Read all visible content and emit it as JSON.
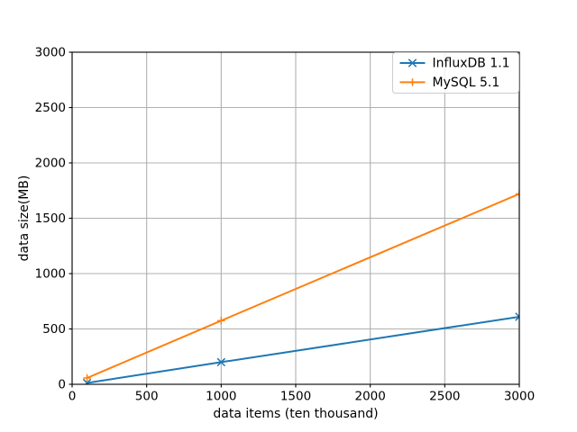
{
  "figure": {
    "background": "#ffffff"
  },
  "colors": {
    "spine": "#000000",
    "grid": "#b0b0b0",
    "tick": "#000000",
    "text": "#000000",
    "legend_border": "#cccccc",
    "legend_background": "#ffffff"
  },
  "chart_data": {
    "type": "line",
    "title": "",
    "xlabel": "data items (ten thousand)",
    "ylabel": "data size(MB)",
    "xlim": [
      0,
      3000
    ],
    "ylim": [
      0,
      3000
    ],
    "xticks": [
      0,
      500,
      1000,
      1500,
      2000,
      2500,
      3000
    ],
    "yticks": [
      0,
      500,
      1000,
      1500,
      2000,
      2500,
      3000
    ],
    "grid": true,
    "legend_position": "upper-right",
    "x": [
      100,
      1000,
      3000
    ],
    "series": [
      {
        "name": "InfluxDB 1.1",
        "color": "#1f77b4",
        "marker": "x",
        "values": [
          12,
          200,
          610
        ]
      },
      {
        "name": "MySQL 5.1",
        "color": "#ff7f0e",
        "marker": "plus",
        "values": [
          57,
          575,
          1720
        ]
      }
    ]
  }
}
